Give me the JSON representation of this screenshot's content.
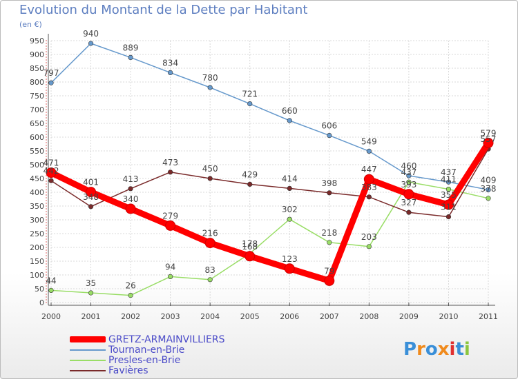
{
  "title": "Evolution du Montant de la Dette par Habitant",
  "unit": "(en €)",
  "logo": "Proxiti",
  "chart_data": {
    "type": "line",
    "x": [
      "2000",
      "2001",
      "2002",
      "2003",
      "2004",
      "2005",
      "2006",
      "2007",
      "2008",
      "2009",
      "2010",
      "2011"
    ],
    "ylim": [
      0,
      950
    ],
    "yticks": [
      0,
      50,
      100,
      150,
      200,
      250,
      300,
      350,
      400,
      450,
      500,
      550,
      600,
      650,
      700,
      750,
      800,
      850,
      900,
      950
    ],
    "grid": true,
    "legend_position": "bottom-left",
    "series": [
      {
        "name": "GRETZ-ARMAINVILLIERS",
        "color": "#ff0000",
        "values": [
          471,
          401,
          340,
          279,
          216,
          168,
          123,
          79,
          447,
          393,
          355,
          579
        ]
      },
      {
        "name": "Tournan-en-Brie",
        "color": "#6699cc",
        "values": [
          797,
          940,
          889,
          834,
          780,
          721,
          660,
          606,
          549,
          460,
          437,
          409
        ]
      },
      {
        "name": "Presles-en-Brie",
        "color": "#99dd66",
        "values": [
          44,
          35,
          26,
          94,
          83,
          178,
          302,
          218,
          203,
          437,
          411,
          378
        ]
      },
      {
        "name": "Favières",
        "color": "#7a2a2a",
        "values": [
          442,
          348,
          413,
          473,
          450,
          429,
          414,
          398,
          383,
          327,
          311,
          557
        ]
      }
    ]
  }
}
